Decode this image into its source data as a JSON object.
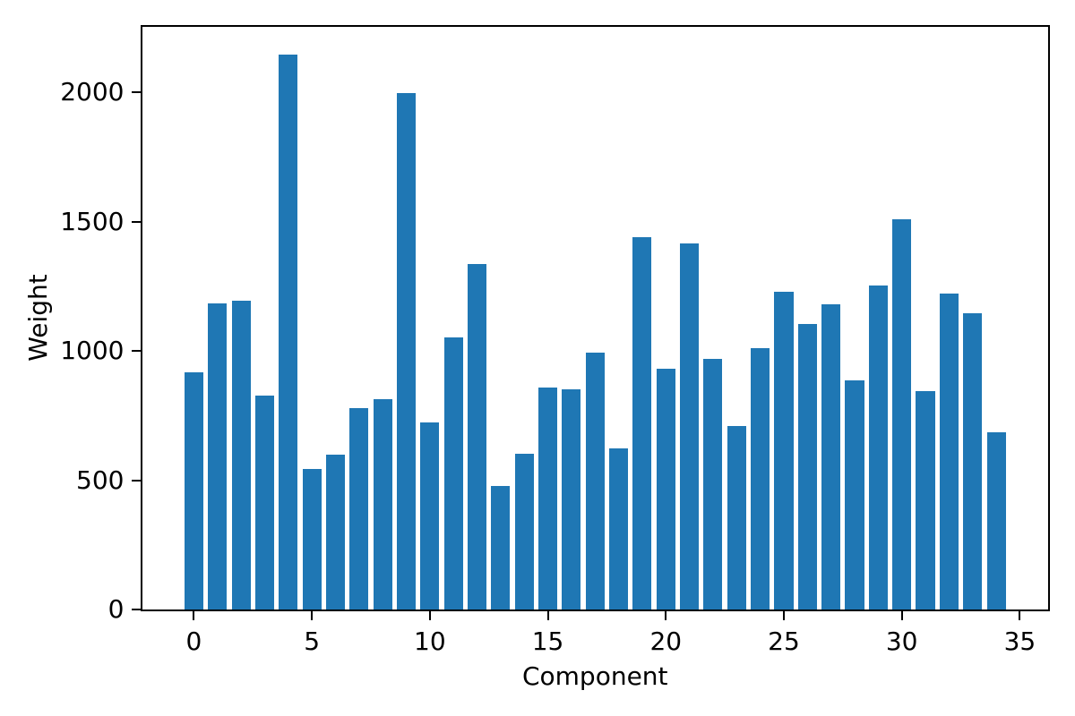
{
  "chart_data": {
    "type": "bar",
    "title": "",
    "xlabel": "Component",
    "ylabel": "Weight",
    "categories": [
      0,
      1,
      2,
      3,
      4,
      5,
      6,
      7,
      8,
      9,
      10,
      11,
      12,
      13,
      14,
      15,
      16,
      17,
      18,
      19,
      20,
      21,
      22,
      23,
      24,
      25,
      26,
      27,
      28,
      29,
      30,
      31,
      32,
      33,
      34
    ],
    "values": [
      916,
      1185,
      1193,
      827,
      2147,
      545,
      598,
      779,
      812,
      1998,
      722,
      1051,
      1337,
      477,
      603,
      857,
      852,
      992,
      624,
      1441,
      930,
      1415,
      970,
      711,
      1011,
      1228,
      1104,
      1182,
      887,
      1254,
      1508,
      845,
      1222,
      1145,
      686
    ],
    "xticks": [
      0,
      5,
      10,
      15,
      20,
      25,
      30,
      35
    ],
    "yticks": [
      0,
      500,
      1000,
      1500,
      2000
    ],
    "xlim": [
      -2.2,
      36.2
    ],
    "ylim": [
      0,
      2255
    ],
    "bar_width": 0.8,
    "bar_color": "#1f77b4",
    "axis_color": "#000000",
    "background_color": "#ffffff",
    "grid": false,
    "legend_position": "none"
  }
}
